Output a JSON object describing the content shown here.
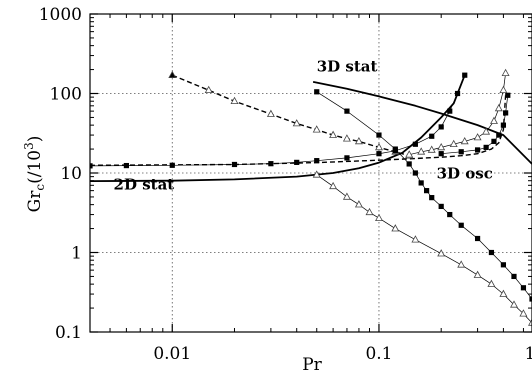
{
  "chart_data": {
    "type": "line",
    "title": "",
    "xlabel": "Pr",
    "ylabel_main": "Gr",
    "ylabel_sub": "c",
    "ylabel_suffix": "(/10",
    "ylabel_sup": "3",
    "ylabel_close": ")",
    "xscale": "log",
    "yscale": "log",
    "xlim": [
      0.004,
      0.55
    ],
    "ylim": [
      0.1,
      1000
    ],
    "grid": true,
    "x_ticks": [
      {
        "value": 0.01,
        "label": "0.01"
      },
      {
        "value": 0.1,
        "label": "0.1"
      },
      {
        "value": 1,
        "label": "1"
      }
    ],
    "y_ticks": [
      {
        "value": 0.1,
        "label": "0.1"
      },
      {
        "value": 1,
        "label": "1"
      },
      {
        "value": 10,
        "label": "10"
      },
      {
        "value": 100,
        "label": "100"
      },
      {
        "value": 1000,
        "label": "1000"
      }
    ],
    "annotations": [
      {
        "text": "3D stat",
        "x": 0.05,
        "y": 190
      },
      {
        "text": "2D stat",
        "x": 0.0052,
        "y": 6.2
      },
      {
        "text": "3D osc",
        "x": 0.19,
        "y": 8.5
      }
    ],
    "series": [
      {
        "style": "solid-thick",
        "marker": "none",
        "x": [
          0.048,
          0.07,
          0.1,
          0.15,
          0.2,
          0.3,
          0.4,
          0.55
        ],
        "y": [
          140,
          115,
          92,
          70,
          56,
          40,
          30,
          13
        ]
      },
      {
        "style": "solid-thick",
        "marker": "none",
        "x": [
          0.004,
          0.01,
          0.02,
          0.04,
          0.06,
          0.08,
          0.1,
          0.13,
          0.16,
          0.2,
          0.23,
          0.26
        ],
        "y": [
          7.9,
          8.0,
          8.3,
          9.0,
          10.0,
          11.5,
          13.5,
          18,
          28,
          50,
          75,
          170
        ]
      },
      {
        "style": "dashed-thick",
        "marker": "none",
        "x": [
          0.004,
          0.02,
          0.05,
          0.1,
          0.15,
          0.2,
          0.25,
          0.3,
          0.35,
          0.38,
          0.4,
          0.41
        ],
        "y": [
          12.5,
          12.8,
          13.5,
          14.5,
          15.2,
          15.8,
          16.5,
          17.5,
          20,
          24,
          35,
          95
        ]
      },
      {
        "style": "dashed-thick",
        "marker": "triangle",
        "x": [
          0.01,
          0.015,
          0.02,
          0.03,
          0.04,
          0.05,
          0.06,
          0.07,
          0.08,
          0.1,
          0.12,
          0.14
        ],
        "y": [
          170,
          110,
          80,
          55,
          42,
          35,
          30,
          27,
          25,
          21,
          18.5,
          16.5
        ]
      },
      {
        "style": "thin",
        "marker": "square",
        "x": [
          0.004,
          0.006,
          0.01,
          0.02,
          0.03,
          0.04,
          0.05,
          0.07,
          0.1,
          0.12,
          0.15,
          0.18,
          0.2,
          0.22,
          0.24,
          0.26
        ],
        "y": [
          12.3,
          12.4,
          12.5,
          12.8,
          13.1,
          13.6,
          14.3,
          15.5,
          17.5,
          19,
          23,
          29,
          38,
          60,
          100,
          170
        ]
      },
      {
        "style": "thin",
        "marker": "square",
        "x": [
          0.05,
          0.07,
          0.1,
          0.12,
          0.14,
          0.15,
          0.16,
          0.17,
          0.18,
          0.2,
          0.22,
          0.25,
          0.3,
          0.35,
          0.4,
          0.45,
          0.5,
          0.55
        ],
        "y": [
          105,
          60,
          30,
          20,
          13,
          10,
          7.5,
          6.0,
          4.9,
          3.8,
          3.0,
          2.2,
          1.5,
          1.0,
          0.7,
          0.5,
          0.36,
          0.26
        ]
      },
      {
        "style": "thin",
        "marker": "square",
        "x": [
          0.2,
          0.25,
          0.3,
          0.33,
          0.36,
          0.38,
          0.4,
          0.41,
          0.42
        ],
        "y": [
          17.5,
          18.5,
          19.5,
          21,
          25,
          30,
          40,
          57,
          95
        ]
      },
      {
        "style": "thin",
        "marker": "triangle",
        "x": [
          0.05,
          0.06,
          0.07,
          0.08,
          0.09,
          0.1,
          0.12,
          0.15,
          0.2,
          0.25,
          0.3,
          0.35,
          0.4,
          0.45,
          0.5,
          0.55
        ],
        "y": [
          9.5,
          6.8,
          5.0,
          4.0,
          3.2,
          2.7,
          2.0,
          1.45,
          0.97,
          0.7,
          0.52,
          0.4,
          0.3,
          0.22,
          0.17,
          0.13
        ]
      },
      {
        "style": "thin",
        "marker": "triangle",
        "x": [
          0.14,
          0.16,
          0.18,
          0.2,
          0.23,
          0.26,
          0.3,
          0.33,
          0.36,
          0.38,
          0.4,
          0.41
        ],
        "y": [
          17,
          18.5,
          19.5,
          21,
          23,
          25,
          28,
          33,
          45,
          65,
          110,
          180
        ]
      }
    ]
  }
}
